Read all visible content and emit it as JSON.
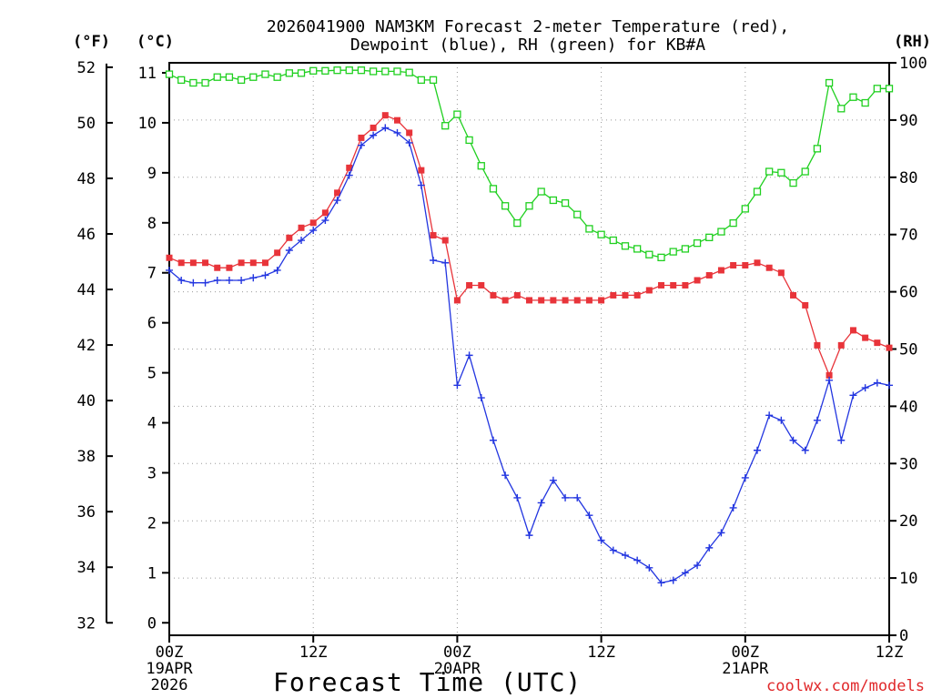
{
  "chart_data": {
    "type": "line",
    "title_line1": "2026041900 NAM3KM Forecast 2-meter Temperature (red),",
    "title_line2": "Dewpoint (blue), RH (green) for KB#A",
    "axis_left_outer_label": "(°F)",
    "axis_left_inner_label": "(°C)",
    "axis_right_label": "(RH)",
    "xlabel": "Forecast Time (UTC)",
    "credit": "coolwx.com/models",
    "x_ticks": [
      {
        "hour": 0,
        "label": "00Z",
        "sub1": "19APR",
        "sub2": "2026"
      },
      {
        "hour": 12,
        "label": "12Z",
        "sub1": "",
        "sub2": ""
      },
      {
        "hour": 24,
        "label": "00Z",
        "sub1": "20APR",
        "sub2": ""
      },
      {
        "hour": 36,
        "label": "12Z",
        "sub1": "",
        "sub2": ""
      },
      {
        "hour": 48,
        "label": "00Z",
        "sub1": "21APR",
        "sub2": ""
      },
      {
        "hour": 60,
        "label": "12Z",
        "sub1": "",
        "sub2": ""
      }
    ],
    "xlim": [
      0,
      60
    ],
    "celsius_lim": [
      -0.25,
      11.2
    ],
    "fahrenheit_ticks": [
      32,
      34,
      36,
      38,
      40,
      42,
      44,
      46,
      48,
      50,
      52
    ],
    "celsius_ticks": [
      0,
      1,
      2,
      3,
      4,
      5,
      6,
      7,
      8,
      9,
      10,
      11
    ],
    "rh_lim": [
      0,
      100
    ],
    "rh_ticks": [
      0,
      10,
      20,
      30,
      40,
      50,
      60,
      70,
      80,
      90,
      100
    ],
    "series": [
      {
        "name": "Temperature",
        "unit": "C",
        "axis": "celsius",
        "color": "#e8343a",
        "marker": "filled-square",
        "x": [
          0,
          1,
          2,
          3,
          4,
          5,
          6,
          7,
          8,
          9,
          10,
          11,
          12,
          13,
          14,
          15,
          16,
          17,
          18,
          19,
          20,
          21,
          22,
          23,
          24,
          25,
          26,
          27,
          28,
          29,
          30,
          31,
          32,
          33,
          34,
          35,
          36,
          37,
          38,
          39,
          40,
          41,
          42,
          43,
          44,
          45,
          46,
          47,
          48,
          49,
          50,
          51,
          52,
          53,
          54,
          55,
          56,
          57,
          58,
          59,
          60
        ],
        "y": [
          7.3,
          7.2,
          7.2,
          7.2,
          7.1,
          7.1,
          7.2,
          7.2,
          7.2,
          7.4,
          7.7,
          7.9,
          8.0,
          8.2,
          8.6,
          9.1,
          9.7,
          9.9,
          10.15,
          10.05,
          9.8,
          9.05,
          7.75,
          7.65,
          6.45,
          6.75,
          6.75,
          6.55,
          6.45,
          6.55,
          6.45,
          6.45,
          6.45,
          6.45,
          6.45,
          6.45,
          6.45,
          6.55,
          6.55,
          6.55,
          6.65,
          6.75,
          6.75,
          6.75,
          6.85,
          6.95,
          7.05,
          7.15,
          7.15,
          7.2,
          7.1,
          7.0,
          6.55,
          6.35,
          5.55,
          4.95,
          5.55,
          5.85,
          5.7,
          5.6,
          5.5
        ]
      },
      {
        "name": "Dewpoint",
        "unit": "C",
        "axis": "celsius",
        "color": "#2336e0",
        "marker": "plus",
        "x": [
          0,
          1,
          2,
          3,
          4,
          5,
          6,
          7,
          8,
          9,
          10,
          11,
          12,
          13,
          14,
          15,
          16,
          17,
          18,
          19,
          20,
          21,
          22,
          23,
          24,
          25,
          26,
          27,
          28,
          29,
          30,
          31,
          32,
          33,
          34,
          35,
          36,
          37,
          38,
          39,
          40,
          41,
          42,
          43,
          44,
          45,
          46,
          47,
          48,
          49,
          50,
          51,
          52,
          53,
          54,
          55,
          56,
          57,
          58,
          59,
          60
        ],
        "y": [
          7.05,
          6.85,
          6.8,
          6.8,
          6.85,
          6.85,
          6.85,
          6.9,
          6.95,
          7.05,
          7.45,
          7.65,
          7.85,
          8.05,
          8.45,
          8.95,
          9.55,
          9.75,
          9.9,
          9.8,
          9.6,
          8.75,
          7.25,
          7.2,
          4.75,
          5.35,
          4.5,
          3.65,
          2.95,
          2.5,
          1.75,
          2.4,
          2.85,
          2.5,
          2.5,
          2.15,
          1.65,
          1.45,
          1.35,
          1.25,
          1.1,
          0.8,
          0.85,
          1.0,
          1.15,
          1.5,
          1.8,
          2.3,
          2.9,
          3.45,
          4.15,
          4.05,
          3.65,
          3.45,
          4.05,
          4.85,
          3.65,
          4.55,
          4.7,
          4.8,
          4.75
        ]
      },
      {
        "name": "RH",
        "unit": "%",
        "axis": "rh",
        "color": "#20d020",
        "marker": "open-square",
        "x": [
          0,
          1,
          2,
          3,
          4,
          5,
          6,
          7,
          8,
          9,
          10,
          11,
          12,
          13,
          14,
          15,
          16,
          17,
          18,
          19,
          20,
          21,
          22,
          23,
          24,
          25,
          26,
          27,
          28,
          29,
          30,
          31,
          32,
          33,
          34,
          35,
          36,
          37,
          38,
          39,
          40,
          41,
          42,
          43,
          44,
          45,
          46,
          47,
          48,
          49,
          50,
          51,
          52,
          53,
          54,
          55,
          56,
          57,
          58,
          59,
          60
        ],
        "y": [
          98,
          97,
          96.5,
          96.5,
          97.5,
          97.5,
          97,
          97.5,
          98,
          97.5,
          98.2,
          98.2,
          98.6,
          98.6,
          98.7,
          98.7,
          98.7,
          98.5,
          98.5,
          98.5,
          98.3,
          97,
          97,
          89,
          91,
          86.5,
          82,
          78,
          75,
          72,
          75,
          77.5,
          76,
          75.5,
          73.5,
          71,
          70,
          69,
          68,
          67.5,
          66.5,
          66,
          67,
          67.5,
          68.5,
          69.5,
          70.5,
          72,
          74.5,
          77.5,
          81,
          80.8,
          79,
          81,
          85,
          96.5,
          92,
          94,
          93,
          95.5,
          95.5
        ]
      }
    ]
  }
}
